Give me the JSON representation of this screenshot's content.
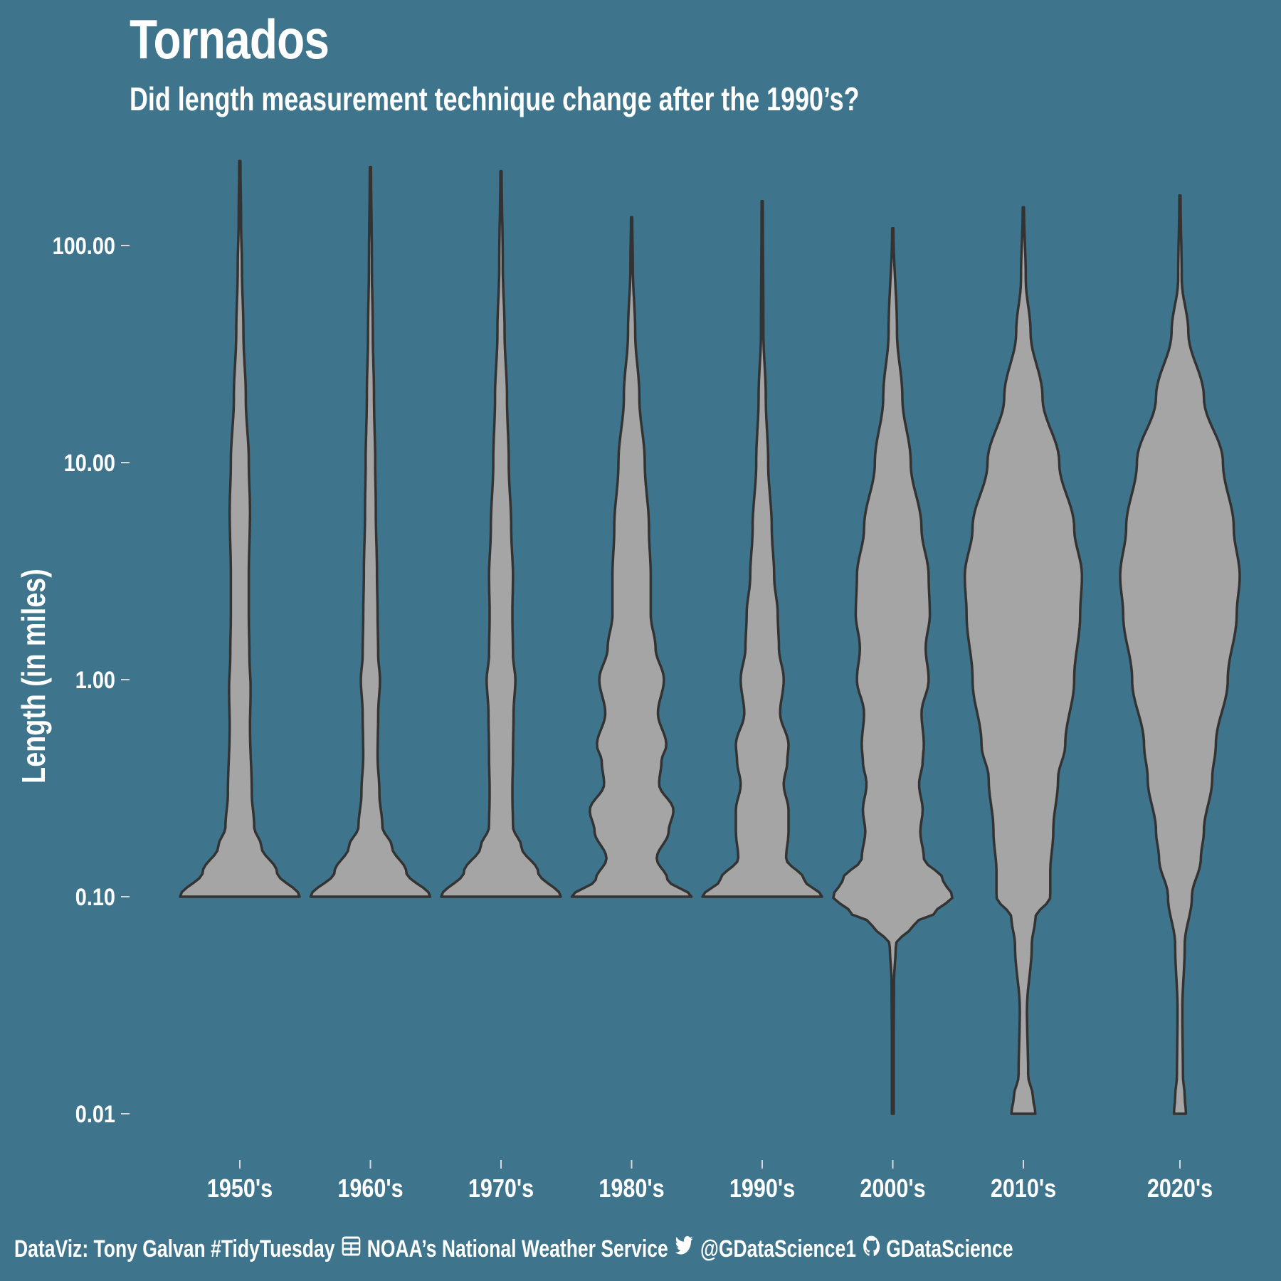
{
  "title": "Tornados",
  "subtitle": "Did length measurement technique change after the 1990’s?",
  "caption": {
    "author": "DataViz: Tony Galvan #TidyTuesday",
    "source": "NOAA’s National Weather Service",
    "twitter": "@GDataScience1",
    "github": "GDataScience",
    "icons": [
      "table-icon",
      "twitter-icon",
      "github-icon"
    ]
  },
  "colors": {
    "background": "#3e758c",
    "violin_fill": "#a5a5a5",
    "violin_stroke": "#333333",
    "text": "#ffffff"
  },
  "chart_data": {
    "type": "violin",
    "ylabel": "Length (in miles)",
    "y_scale": "log10",
    "y_ticks": [
      {
        "value": 0.01,
        "label": "0.01"
      },
      {
        "value": 0.1,
        "label": "0.10"
      },
      {
        "value": 1,
        "label": "1.00"
      },
      {
        "value": 10,
        "label": "10.00"
      },
      {
        "value": 100,
        "label": "100.00"
      }
    ],
    "ylim": [
      0.005,
      300
    ],
    "categories": [
      "1950's",
      "1960's",
      "1970's",
      "1980's",
      "1990's",
      "2000's",
      "2010's",
      "2020's"
    ],
    "grid": false,
    "series": [
      {
        "category": "1950's",
        "y_min": 0.1,
        "y_max": 245,
        "profile": [
          [
            0.1,
            1.0
          ],
          [
            0.13,
            0.62
          ],
          [
            0.17,
            0.36
          ],
          [
            0.21,
            0.24
          ],
          [
            0.3,
            0.2
          ],
          [
            0.6,
            0.17
          ],
          [
            0.9,
            0.18
          ],
          [
            1.3,
            0.16
          ],
          [
            2,
            0.15
          ],
          [
            3,
            0.15
          ],
          [
            6,
            0.17
          ],
          [
            10,
            0.15
          ],
          [
            20,
            0.1
          ],
          [
            40,
            0.06
          ],
          [
            80,
            0.035
          ],
          [
            130,
            0.02
          ],
          [
            245,
            0.01
          ]
        ]
      },
      {
        "category": "1960's",
        "y_min": 0.1,
        "y_max": 230,
        "profile": [
          [
            0.1,
            1.0
          ],
          [
            0.13,
            0.6
          ],
          [
            0.17,
            0.36
          ],
          [
            0.21,
            0.2
          ],
          [
            0.3,
            0.15
          ],
          [
            0.45,
            0.12
          ],
          [
            0.7,
            0.13
          ],
          [
            1.0,
            0.16
          ],
          [
            1.3,
            0.13
          ],
          [
            2,
            0.12
          ],
          [
            3,
            0.11
          ],
          [
            6,
            0.09
          ],
          [
            10,
            0.08
          ],
          [
            20,
            0.06
          ],
          [
            40,
            0.04
          ],
          [
            80,
            0.025
          ],
          [
            230,
            0.01
          ]
        ]
      },
      {
        "category": "1970's",
        "y_min": 0.1,
        "y_max": 220,
        "profile": [
          [
            0.1,
            1.0
          ],
          [
            0.13,
            0.62
          ],
          [
            0.17,
            0.34
          ],
          [
            0.21,
            0.2
          ],
          [
            0.3,
            0.19
          ],
          [
            0.45,
            0.2
          ],
          [
            0.7,
            0.21
          ],
          [
            1.0,
            0.24
          ],
          [
            1.3,
            0.2
          ],
          [
            2,
            0.19
          ],
          [
            3,
            0.2
          ],
          [
            5,
            0.17
          ],
          [
            10,
            0.13
          ],
          [
            20,
            0.1
          ],
          [
            40,
            0.06
          ],
          [
            80,
            0.03
          ],
          [
            220,
            0.01
          ]
        ]
      },
      {
        "category": "1980's",
        "y_min": 0.1,
        "y_max": 135,
        "profile": [
          [
            0.1,
            1.0
          ],
          [
            0.12,
            0.6
          ],
          [
            0.15,
            0.42
          ],
          [
            0.2,
            0.62
          ],
          [
            0.25,
            0.7
          ],
          [
            0.33,
            0.46
          ],
          [
            0.42,
            0.5
          ],
          [
            0.5,
            0.58
          ],
          [
            0.7,
            0.44
          ],
          [
            1.0,
            0.54
          ],
          [
            1.4,
            0.4
          ],
          [
            2,
            0.32
          ],
          [
            3,
            0.32
          ],
          [
            5,
            0.29
          ],
          [
            10,
            0.22
          ],
          [
            20,
            0.13
          ],
          [
            40,
            0.06
          ],
          [
            80,
            0.02
          ],
          [
            135,
            0.01
          ]
        ]
      },
      {
        "category": "1990's",
        "y_min": 0.1,
        "y_max": 160,
        "profile": [
          [
            0.1,
            1.0
          ],
          [
            0.12,
            0.7
          ],
          [
            0.15,
            0.4
          ],
          [
            0.2,
            0.44
          ],
          [
            0.25,
            0.44
          ],
          [
            0.33,
            0.36
          ],
          [
            0.42,
            0.42
          ],
          [
            0.5,
            0.44
          ],
          [
            0.7,
            0.3
          ],
          [
            1.0,
            0.36
          ],
          [
            1.4,
            0.28
          ],
          [
            2,
            0.26
          ],
          [
            3,
            0.2
          ],
          [
            5,
            0.16
          ],
          [
            10,
            0.1
          ],
          [
            20,
            0.06
          ],
          [
            40,
            0.02
          ],
          [
            160,
            0.01
          ]
        ]
      },
      {
        "category": "2000's",
        "y_min": 0.01,
        "y_max": 120,
        "profile": [
          [
            0.01,
            0.015
          ],
          [
            0.02,
            0.015
          ],
          [
            0.04,
            0.02
          ],
          [
            0.06,
            0.05
          ],
          [
            0.075,
            0.35
          ],
          [
            0.085,
            0.72
          ],
          [
            0.1,
            1.0
          ],
          [
            0.12,
            0.84
          ],
          [
            0.15,
            0.52
          ],
          [
            0.2,
            0.46
          ],
          [
            0.25,
            0.5
          ],
          [
            0.33,
            0.44
          ],
          [
            0.42,
            0.5
          ],
          [
            0.5,
            0.52
          ],
          [
            0.7,
            0.48
          ],
          [
            1.0,
            0.6
          ],
          [
            1.4,
            0.55
          ],
          [
            2,
            0.62
          ],
          [
            3,
            0.6
          ],
          [
            5,
            0.48
          ],
          [
            10,
            0.3
          ],
          [
            20,
            0.16
          ],
          [
            40,
            0.07
          ],
          [
            120,
            0.01
          ]
        ]
      },
      {
        "category": "2010's",
        "y_min": 0.01,
        "y_max": 150,
        "profile": [
          [
            0.01,
            0.2
          ],
          [
            0.012,
            0.16
          ],
          [
            0.015,
            0.08
          ],
          [
            0.03,
            0.06
          ],
          [
            0.06,
            0.14
          ],
          [
            0.08,
            0.2
          ],
          [
            0.1,
            0.45
          ],
          [
            0.13,
            0.45
          ],
          [
            0.2,
            0.5
          ],
          [
            0.35,
            0.58
          ],
          [
            0.5,
            0.7
          ],
          [
            1.0,
            0.85
          ],
          [
            2,
            0.95
          ],
          [
            3,
            0.98
          ],
          [
            5,
            0.85
          ],
          [
            10,
            0.6
          ],
          [
            20,
            0.32
          ],
          [
            40,
            0.12
          ],
          [
            70,
            0.04
          ],
          [
            150,
            0.01
          ]
        ]
      },
      {
        "category": "2020's",
        "y_min": 0.01,
        "y_max": 170,
        "profile": [
          [
            0.01,
            0.1
          ],
          [
            0.012,
            0.08
          ],
          [
            0.015,
            0.05
          ],
          [
            0.03,
            0.04
          ],
          [
            0.06,
            0.08
          ],
          [
            0.1,
            0.2
          ],
          [
            0.15,
            0.35
          ],
          [
            0.2,
            0.4
          ],
          [
            0.35,
            0.54
          ],
          [
            0.5,
            0.6
          ],
          [
            1.0,
            0.8
          ],
          [
            2,
            0.95
          ],
          [
            3,
            1.0
          ],
          [
            5,
            0.9
          ],
          [
            10,
            0.72
          ],
          [
            20,
            0.4
          ],
          [
            40,
            0.14
          ],
          [
            70,
            0.03
          ],
          [
            170,
            0.01
          ]
        ]
      }
    ]
  }
}
